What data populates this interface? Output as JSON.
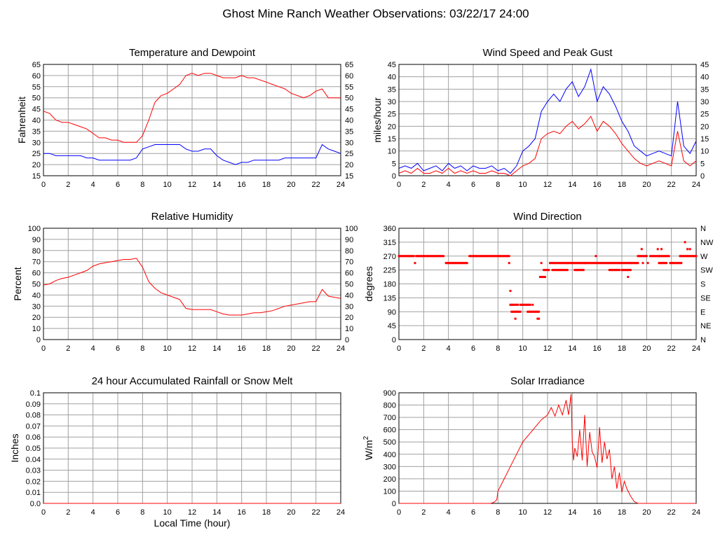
{
  "page": {
    "title": "Ghost Mine Ranch Weather Observations: 03/22/17 24:00",
    "xlabel": "Local Time (hour)"
  },
  "chart_data": [
    {
      "id": "temp",
      "type": "line",
      "title": "Temperature and Dewpoint",
      "ylabel": "Fahrenheit",
      "ylim": [
        15,
        65
      ],
      "yticks": [
        15,
        20,
        25,
        30,
        35,
        40,
        45,
        50,
        55,
        60,
        65
      ],
      "right_ticks": [
        "15",
        "20",
        "25",
        "30",
        "35",
        "40",
        "45",
        "50",
        "55",
        "60",
        "65"
      ],
      "xlim": [
        0,
        24
      ],
      "xticks": [
        0,
        2,
        4,
        6,
        8,
        10,
        12,
        14,
        16,
        18,
        20,
        22,
        24
      ],
      "grid": true,
      "series": [
        {
          "color": "#ff0000",
          "x": [
            0,
            0.5,
            1,
            1.5,
            2,
            2.5,
            3,
            3.5,
            4,
            4.5,
            5,
            5.5,
            6,
            6.5,
            7,
            7.5,
            8,
            8.5,
            9,
            9.5,
            10,
            10.5,
            11,
            11.5,
            12,
            12.5,
            13,
            13.5,
            14,
            14.5,
            15,
            15.5,
            16,
            16.5,
            17,
            17.5,
            18,
            18.5,
            19,
            19.5,
            20,
            20.5,
            21,
            21.5,
            22,
            22.5,
            23,
            23.5,
            24
          ],
          "values": [
            44,
            43,
            40,
            39,
            39,
            38,
            37,
            36,
            34,
            32,
            32,
            31,
            31,
            30,
            30,
            30,
            33,
            40,
            48,
            51,
            52,
            54,
            56,
            60,
            61,
            60,
            61,
            61,
            60,
            59,
            59,
            59,
            60,
            59,
            59,
            58,
            57,
            56,
            55,
            54,
            52,
            51,
            50,
            51,
            53,
            54,
            50,
            50,
            50
          ]
        },
        {
          "color": "#0000ff",
          "x": [
            0,
            0.5,
            1,
            1.5,
            2,
            2.5,
            3,
            3.5,
            4,
            4.5,
            5,
            5.5,
            6,
            6.5,
            7,
            7.5,
            8,
            8.5,
            9,
            9.5,
            10,
            10.5,
            11,
            11.5,
            12,
            12.5,
            13,
            13.5,
            14,
            14.5,
            15,
            15.5,
            16,
            16.5,
            17,
            17.5,
            18,
            18.5,
            19,
            19.5,
            20,
            20.5,
            21,
            21.5,
            22,
            22.5,
            23,
            23.5,
            24
          ],
          "values": [
            25,
            25,
            24,
            24,
            24,
            24,
            24,
            23,
            23,
            22,
            22,
            22,
            22,
            22,
            22,
            23,
            27,
            28,
            29,
            29,
            29,
            29,
            29,
            27,
            26,
            26,
            27,
            27,
            24,
            22,
            21,
            20,
            21,
            21,
            22,
            22,
            22,
            22,
            22,
            23,
            23,
            23,
            23,
            23,
            23,
            29,
            27,
            26,
            25
          ]
        }
      ]
    },
    {
      "id": "wind",
      "type": "line",
      "title": "Wind Speed and Peak Gust",
      "ylabel": "miles/hour",
      "ylim": [
        0,
        45
      ],
      "yticks": [
        0,
        5,
        10,
        15,
        20,
        25,
        30,
        35,
        40,
        45
      ],
      "right_ticks": [
        "0",
        "5",
        "10",
        "15",
        "20",
        "25",
        "30",
        "35",
        "40",
        "45"
      ],
      "xlim": [
        0,
        24
      ],
      "xticks": [
        0,
        2,
        4,
        6,
        8,
        10,
        12,
        14,
        16,
        18,
        20,
        22,
        24
      ],
      "grid": true,
      "series": [
        {
          "color": "#0000ff",
          "x": [
            0,
            0.5,
            1,
            1.5,
            2,
            2.5,
            3,
            3.5,
            4,
            4.5,
            5,
            5.5,
            6,
            6.5,
            7,
            7.5,
            8,
            8.5,
            9,
            9.5,
            10,
            10.5,
            11,
            11.5,
            12,
            12.5,
            13,
            13.5,
            14,
            14.5,
            15,
            15.5,
            16,
            16.5,
            17,
            17.5,
            18,
            18.5,
            19,
            19.5,
            20,
            20.5,
            21,
            21.5,
            22,
            22.5,
            23,
            23.5,
            24
          ],
          "values": [
            3,
            4,
            3,
            5,
            2,
            3,
            4,
            2,
            5,
            3,
            4,
            2,
            4,
            3,
            3,
            4,
            2,
            3,
            1,
            4,
            10,
            12,
            15,
            26,
            30,
            33,
            30,
            35,
            38,
            32,
            36,
            43,
            30,
            36,
            33,
            28,
            22,
            18,
            12,
            10,
            8,
            9,
            10,
            9,
            8,
            30,
            12,
            9,
            14
          ]
        },
        {
          "color": "#ff0000",
          "x": [
            0,
            0.5,
            1,
            1.5,
            2,
            2.5,
            3,
            3.5,
            4,
            4.5,
            5,
            5.5,
            6,
            6.5,
            7,
            7.5,
            8,
            8.5,
            9,
            9.5,
            10,
            10.5,
            11,
            11.5,
            12,
            12.5,
            13,
            13.5,
            14,
            14.5,
            15,
            15.5,
            16,
            16.5,
            17,
            17.5,
            18,
            18.5,
            19,
            19.5,
            20,
            20.5,
            21,
            21.5,
            22,
            22.5,
            23,
            23.5,
            24
          ],
          "values": [
            1,
            2,
            1,
            3,
            1,
            1,
            2,
            1,
            3,
            1,
            2,
            1,
            2,
            1,
            1,
            2,
            1,
            1,
            0,
            2,
            4,
            5,
            7,
            15,
            17,
            18,
            17,
            20,
            22,
            19,
            21,
            24,
            18,
            22,
            20,
            17,
            13,
            10,
            7,
            5,
            4,
            5,
            6,
            5,
            4,
            18,
            6,
            4,
            6
          ]
        }
      ]
    },
    {
      "id": "rh",
      "type": "line",
      "title": "Relative Humidity",
      "ylabel": "Percent",
      "ylim": [
        0,
        100
      ],
      "yticks": [
        0,
        10,
        20,
        30,
        40,
        50,
        60,
        70,
        80,
        90,
        100
      ],
      "right_ticks": [
        "0",
        "10",
        "20",
        "30",
        "40",
        "50",
        "60",
        "70",
        "80",
        "90",
        "100"
      ],
      "xlim": [
        0,
        24
      ],
      "xticks": [
        0,
        2,
        4,
        6,
        8,
        10,
        12,
        14,
        16,
        18,
        20,
        22,
        24
      ],
      "grid": true,
      "series": [
        {
          "color": "#ff0000",
          "x": [
            0,
            0.5,
            1,
            1.5,
            2,
            2.5,
            3,
            3.5,
            4,
            4.5,
            5,
            5.5,
            6,
            6.5,
            7,
            7.5,
            8,
            8.5,
            9,
            9.5,
            10,
            10.5,
            11,
            11.5,
            12,
            12.5,
            13,
            13.5,
            14,
            14.5,
            15,
            15.5,
            16,
            16.5,
            17,
            17.5,
            18,
            18.5,
            19,
            19.5,
            20,
            20.5,
            21,
            21.5,
            22,
            22.5,
            23,
            23.5,
            24
          ],
          "values": [
            49,
            50,
            53,
            55,
            56,
            58,
            60,
            62,
            66,
            68,
            69,
            70,
            71,
            72,
            72,
            73,
            65,
            52,
            46,
            42,
            40,
            38,
            36,
            28,
            27,
            27,
            27,
            27,
            25,
            23,
            22,
            22,
            22,
            23,
            24,
            24,
            25,
            26,
            28,
            30,
            31,
            32,
            33,
            34,
            34,
            45,
            39,
            38,
            37
          ]
        }
      ]
    },
    {
      "id": "wdir",
      "type": "scatter",
      "title": "Wind Direction",
      "ylabel": "degrees",
      "ylim": [
        0,
        360
      ],
      "yticks": [
        0,
        45,
        90,
        135,
        180,
        225,
        270,
        315,
        360
      ],
      "right_ticks": [
        "N",
        "NE",
        "E",
        "SE",
        "S",
        "SW",
        "W",
        "NW",
        "N"
      ],
      "xlim": [
        0,
        24
      ],
      "xticks": [
        0,
        2,
        4,
        6,
        8,
        10,
        12,
        14,
        16,
        18,
        20,
        22,
        24
      ],
      "grid": true,
      "series": [
        {
          "color": "#ff0000",
          "segments": [
            {
              "x0": 0,
              "x1": 1.2,
              "y": 270
            },
            {
              "x0": 1.4,
              "x1": 3.6,
              "y": 270
            },
            {
              "x0": 3.8,
              "x1": 5.5,
              "y": 247.5
            },
            {
              "x0": 5.7,
              "x1": 8.9,
              "y": 270
            },
            {
              "x0": 9.0,
              "x1": 9.6,
              "y": 112.5
            },
            {
              "x0": 9.1,
              "x1": 9.8,
              "y": 90
            },
            {
              "x0": 9.8,
              "x1": 10.6,
              "y": 112.5
            },
            {
              "x0": 10.4,
              "x1": 11.3,
              "y": 90
            },
            {
              "x0": 11.4,
              "x1": 11.8,
              "y": 202.5
            },
            {
              "x0": 11.7,
              "x1": 12.1,
              "y": 225
            },
            {
              "x0": 12.2,
              "x1": 15.0,
              "y": 247.5
            },
            {
              "x0": 12.4,
              "x1": 13.6,
              "y": 225
            },
            {
              "x0": 14.2,
              "x1": 14.9,
              "y": 225
            },
            {
              "x0": 15.0,
              "x1": 18.6,
              "y": 247.5
            },
            {
              "x0": 17.0,
              "x1": 17.8,
              "y": 225
            },
            {
              "x0": 18.0,
              "x1": 18.7,
              "y": 225
            },
            {
              "x0": 18.7,
              "x1": 19.3,
              "y": 247.5
            },
            {
              "x0": 19.3,
              "x1": 20.0,
              "y": 270
            },
            {
              "x0": 20.3,
              "x1": 21.8,
              "y": 270
            },
            {
              "x0": 21.0,
              "x1": 21.6,
              "y": 247.5
            },
            {
              "x0": 21.9,
              "x1": 22.8,
              "y": 247.5
            },
            {
              "x0": 22.7,
              "x1": 24.0,
              "y": 270
            }
          ],
          "points": [
            {
              "x": 1.3,
              "y": 247.5
            },
            {
              "x": 8.9,
              "y": 247.5
            },
            {
              "x": 9.0,
              "y": 157.5
            },
            {
              "x": 9.4,
              "y": 67.5
            },
            {
              "x": 10.8,
              "y": 112.5
            },
            {
              "x": 11.2,
              "y": 67.5
            },
            {
              "x": 11.3,
              "y": 67.5
            },
            {
              "x": 11.5,
              "y": 247.5
            },
            {
              "x": 15.9,
              "y": 270
            },
            {
              "x": 18.5,
              "y": 202.5
            },
            {
              "x": 19.6,
              "y": 292.5
            },
            {
              "x": 19.7,
              "y": 247.5
            },
            {
              "x": 20.1,
              "y": 247.5
            },
            {
              "x": 20.9,
              "y": 292.5
            },
            {
              "x": 21.2,
              "y": 292.5
            },
            {
              "x": 23.1,
              "y": 315
            },
            {
              "x": 23.3,
              "y": 292.5
            },
            {
              "x": 23.5,
              "y": 292.5
            }
          ]
        }
      ]
    },
    {
      "id": "rain",
      "type": "line",
      "title": "24 hour Accumulated Rainfall or Snow Melt",
      "ylabel": "Inches",
      "ylim": [
        0,
        0.1
      ],
      "yticks": [
        0,
        0.01,
        0.02,
        0.03,
        0.04,
        0.05,
        0.06,
        0.07,
        0.08,
        0.09,
        0.1
      ],
      "ytick_labels": [
        "0.0",
        "0.01",
        "0.02",
        "0.03",
        "0.04",
        "0.05",
        "0.06",
        "0.07",
        "0.08",
        "0.09",
        "0.1"
      ],
      "xlim": [
        0,
        24
      ],
      "xticks": [
        0,
        2,
        4,
        6,
        8,
        10,
        12,
        14,
        16,
        18,
        20,
        22,
        24
      ],
      "grid": true,
      "series": [
        {
          "color": "#ff0000",
          "x": [
            0,
            24
          ],
          "values": [
            0,
            0
          ]
        }
      ]
    },
    {
      "id": "solar",
      "type": "line",
      "title": "Solar Irradiance",
      "ylabel": "W/m",
      "ylabel_sup": "2",
      "ylim": [
        0,
        900
      ],
      "yticks": [
        0,
        100,
        200,
        300,
        400,
        500,
        600,
        700,
        800,
        900
      ],
      "xlim": [
        0,
        24
      ],
      "xticks": [
        0,
        2,
        4,
        6,
        8,
        10,
        12,
        14,
        16,
        18,
        20,
        22,
        24
      ],
      "grid": true,
      "series": [
        {
          "color": "#ff0000",
          "x": [
            0,
            7.4,
            7.7,
            7.9,
            8.0,
            8.5,
            9.0,
            9.5,
            10.0,
            10.5,
            11.0,
            11.5,
            12.0,
            12.3,
            12.6,
            12.9,
            13.2,
            13.5,
            13.7,
            13.9,
            14.0,
            14.1,
            14.2,
            14.4,
            14.6,
            14.8,
            15.0,
            15.2,
            15.4,
            15.6,
            15.8,
            16.0,
            16.2,
            16.4,
            16.6,
            16.8,
            17.0,
            17.2,
            17.4,
            17.6,
            17.8,
            18.0,
            18.2,
            18.4,
            18.7,
            19.0,
            19.3,
            24
          ],
          "values": [
            0,
            0,
            10,
            30,
            100,
            200,
            300,
            400,
            500,
            560,
            620,
            680,
            720,
            780,
            710,
            800,
            720,
            840,
            720,
            890,
            500,
            350,
            450,
            380,
            600,
            350,
            720,
            300,
            580,
            420,
            380,
            290,
            620,
            330,
            500,
            360,
            440,
            200,
            300,
            120,
            250,
            90,
            180,
            120,
            60,
            15,
            0,
            0
          ]
        }
      ]
    }
  ]
}
